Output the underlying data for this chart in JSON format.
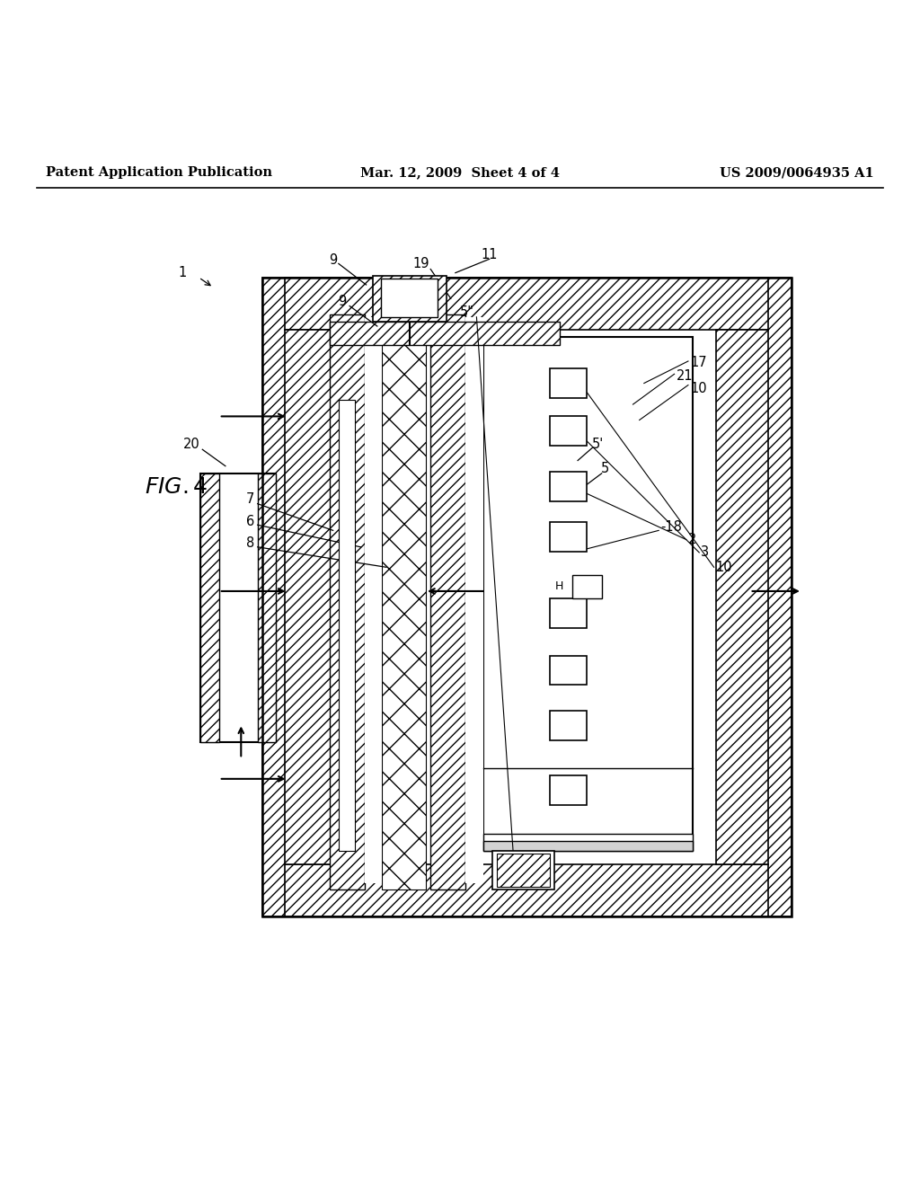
{
  "bg_color": "#ffffff",
  "line_color": "#000000",
  "header": {
    "left": "Patent Application Publication",
    "center": "Mar. 12, 2009  Sheet 4 of 4",
    "right": "US 2009/0064935 A1"
  },
  "fig_label": "FIG. 4"
}
